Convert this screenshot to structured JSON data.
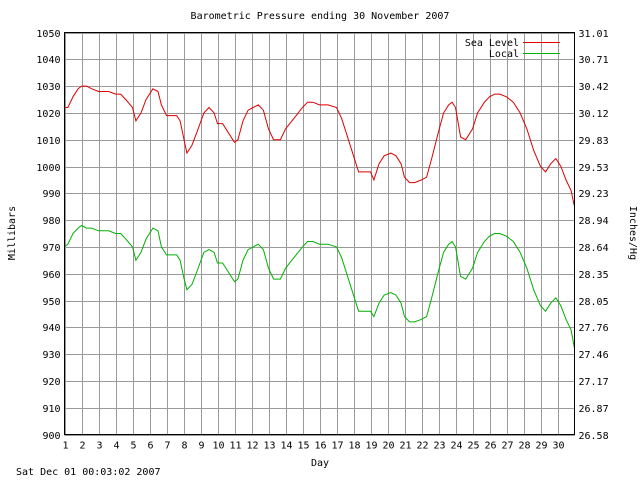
{
  "timestamp": "Sat Dec 01 00:03:02 2007",
  "chart_data": {
    "type": "line",
    "title": "Barometric Pressure ending 30 November 2007",
    "xlabel": "Day",
    "ylabel": "Millibars",
    "ylabel_right": "Inches/Hg",
    "xlim": [
      1,
      31
    ],
    "ylim": [
      900,
      1050
    ],
    "x_ticks": [
      "1",
      "2",
      "3",
      "4",
      "5",
      "6",
      "7",
      "8",
      "9",
      "10",
      "11",
      "12",
      "13",
      "14",
      "15",
      "16",
      "17",
      "18",
      "19",
      "20",
      "21",
      "22",
      "23",
      "24",
      "25",
      "26",
      "27",
      "28",
      "29",
      "30"
    ],
    "y_ticks": [
      "900",
      "910",
      "920",
      "930",
      "940",
      "950",
      "960",
      "970",
      "980",
      "990",
      "1000",
      "1010",
      "1020",
      "1030",
      "1040",
      "1050"
    ],
    "y_ticks_right": [
      "26.58",
      "26.87",
      "27.17",
      "27.46",
      "27.76",
      "28.05",
      "28.35",
      "28.64",
      "28.94",
      "29.23",
      "29.53",
      "29.83",
      "30.12",
      "30.42",
      "30.71",
      "31.01"
    ],
    "grid": true,
    "legend_position": "top-right",
    "series": [
      {
        "name": "Sea Level",
        "color": "#e00000",
        "x": [
          1.0,
          1.2,
          1.5,
          1.8,
          2.0,
          2.3,
          2.6,
          3.0,
          3.3,
          3.6,
          4.0,
          4.3,
          4.6,
          5.0,
          5.2,
          5.5,
          5.8,
          6.2,
          6.5,
          6.7,
          7.0,
          7.3,
          7.6,
          7.8,
          8.0,
          8.2,
          8.5,
          8.8,
          9.2,
          9.5,
          9.8,
          10.0,
          10.3,
          10.6,
          11.0,
          11.2,
          11.5,
          11.8,
          12.1,
          12.4,
          12.7,
          13.0,
          13.3,
          13.7,
          14.0,
          14.5,
          15.0,
          15.3,
          15.6,
          16.0,
          16.5,
          17.0,
          17.3,
          17.6,
          18.0,
          18.3,
          18.6,
          19.0,
          19.2,
          19.5,
          19.8,
          20.2,
          20.5,
          20.8,
          21.0,
          21.3,
          21.6,
          22.0,
          22.3,
          22.6,
          23.0,
          23.3,
          23.6,
          23.8,
          24.0,
          24.3,
          24.6,
          25.0,
          25.3,
          25.7,
          26.0,
          26.3,
          26.6,
          27.0,
          27.4,
          27.8,
          28.2,
          28.6,
          29.0,
          29.3,
          29.6,
          29.9,
          30.2,
          30.5,
          30.8,
          31.0
        ],
        "y": [
          1022,
          1022,
          1026,
          1029,
          1030,
          1030,
          1029,
          1028,
          1028,
          1028,
          1027,
          1027,
          1025,
          1022,
          1017,
          1020,
          1025,
          1029,
          1028,
          1023,
          1019,
          1019,
          1019,
          1017,
          1011,
          1005,
          1008,
          1013,
          1020,
          1022,
          1020,
          1016,
          1016,
          1013,
          1009,
          1010,
          1017,
          1021,
          1022,
          1023,
          1021,
          1014,
          1010,
          1010,
          1014,
          1018,
          1022,
          1024,
          1024,
          1023,
          1023,
          1022,
          1018,
          1012,
          1004,
          998,
          998,
          998,
          995,
          1001,
          1004,
          1005,
          1004,
          1001,
          996,
          994,
          994,
          995,
          996,
          1003,
          1013,
          1020,
          1023,
          1024,
          1022,
          1011,
          1010,
          1014,
          1020,
          1024,
          1026,
          1027,
          1027,
          1026,
          1024,
          1020,
          1014,
          1006,
          1000,
          998,
          1001,
          1003,
          1000,
          995,
          991,
          985
        ]
      },
      {
        "name": "Local",
        "color": "#00b000",
        "x": [
          1.0,
          1.2,
          1.5,
          1.8,
          2.0,
          2.3,
          2.6,
          3.0,
          3.3,
          3.6,
          4.0,
          4.3,
          4.6,
          5.0,
          5.2,
          5.5,
          5.8,
          6.2,
          6.5,
          6.7,
          7.0,
          7.3,
          7.6,
          7.8,
          8.0,
          8.2,
          8.5,
          8.8,
          9.2,
          9.5,
          9.8,
          10.0,
          10.3,
          10.6,
          11.0,
          11.2,
          11.5,
          11.8,
          12.1,
          12.4,
          12.7,
          13.0,
          13.3,
          13.7,
          14.0,
          14.5,
          15.0,
          15.3,
          15.6,
          16.0,
          16.5,
          17.0,
          17.3,
          17.6,
          18.0,
          18.3,
          18.6,
          19.0,
          19.2,
          19.5,
          19.8,
          20.2,
          20.5,
          20.8,
          21.0,
          21.3,
          21.6,
          22.0,
          22.3,
          22.6,
          23.0,
          23.3,
          23.6,
          23.8,
          24.0,
          24.3,
          24.6,
          25.0,
          25.3,
          25.7,
          26.0,
          26.3,
          26.6,
          27.0,
          27.4,
          27.8,
          28.2,
          28.6,
          29.0,
          29.3,
          29.6,
          29.9,
          30.2,
          30.5,
          30.8,
          31.0
        ],
        "y": [
          970,
          971,
          975,
          977,
          978,
          977,
          977,
          976,
          976,
          976,
          975,
          975,
          973,
          970,
          965,
          968,
          973,
          977,
          976,
          970,
          967,
          967,
          967,
          965,
          959,
          954,
          956,
          961,
          968,
          969,
          968,
          964,
          964,
          961,
          957,
          958,
          965,
          969,
          970,
          971,
          969,
          962,
          958,
          958,
          962,
          966,
          970,
          972,
          972,
          971,
          971,
          970,
          966,
          960,
          952,
          946,
          946,
          946,
          944,
          949,
          952,
          953,
          952,
          949,
          944,
          942,
          942,
          943,
          944,
          951,
          961,
          968,
          971,
          972,
          970,
          959,
          958,
          962,
          968,
          972,
          974,
          975,
          975,
          974,
          972,
          968,
          962,
          954,
          948,
          946,
          949,
          951,
          948,
          943,
          939,
          932
        ]
      }
    ]
  }
}
